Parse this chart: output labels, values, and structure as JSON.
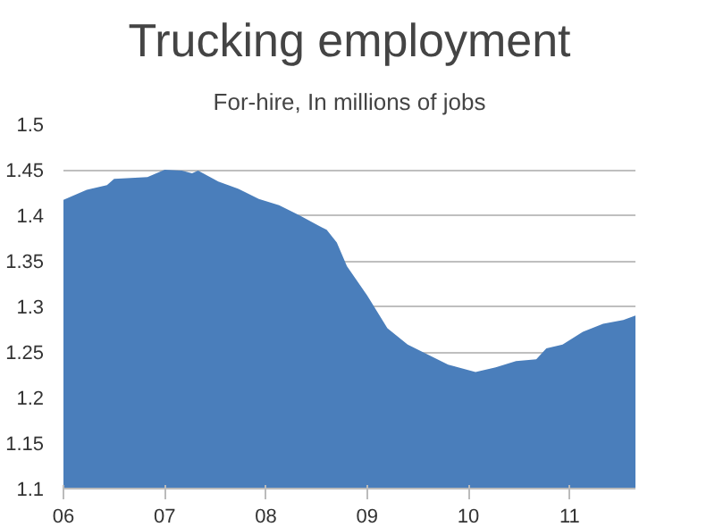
{
  "chart_data": {
    "type": "area",
    "title": "Trucking employment",
    "subtitle": "For-hire, In millions of jobs",
    "x": [
      2006.0,
      2006.23,
      2006.43,
      2006.5,
      2006.83,
      2007.0,
      2007.17,
      2007.27,
      2007.33,
      2007.53,
      2007.73,
      2007.93,
      2008.13,
      2008.33,
      2008.53,
      2008.6,
      2008.7,
      2008.8,
      2009.0,
      2009.2,
      2009.4,
      2009.6,
      2009.8,
      2010.07,
      2010.27,
      2010.47,
      2010.67,
      2010.77,
      2010.93,
      2011.13,
      2011.33,
      2011.53,
      2011.65
    ],
    "series": [
      {
        "color": "#4a7ebb",
        "values": [
          1.417,
          1.428,
          1.433,
          1.44,
          1.442,
          1.45,
          1.449,
          1.446,
          1.449,
          1.437,
          1.429,
          1.418,
          1.411,
          1.4,
          1.388,
          1.384,
          1.37,
          1.344,
          1.312,
          1.276,
          1.258,
          1.247,
          1.236,
          1.228,
          1.233,
          1.24,
          1.242,
          1.254,
          1.258,
          1.272,
          1.281,
          1.285,
          1.29
        ]
      }
    ],
    "xlim": [
      2006.0,
      2011.65
    ],
    "xticks": [
      {
        "value": 2006,
        "label": "06"
      },
      {
        "value": 2007,
        "label": "07"
      },
      {
        "value": 2008,
        "label": "08"
      },
      {
        "value": 2009,
        "label": "09"
      },
      {
        "value": 2010,
        "label": "10"
      },
      {
        "value": 2011,
        "label": "11"
      }
    ],
    "ylim": [
      1.1,
      1.5
    ],
    "yticks": [
      1.1,
      1.15,
      1.2,
      1.25,
      1.3,
      1.35,
      1.4,
      1.45,
      1.5
    ],
    "grid": "y"
  }
}
